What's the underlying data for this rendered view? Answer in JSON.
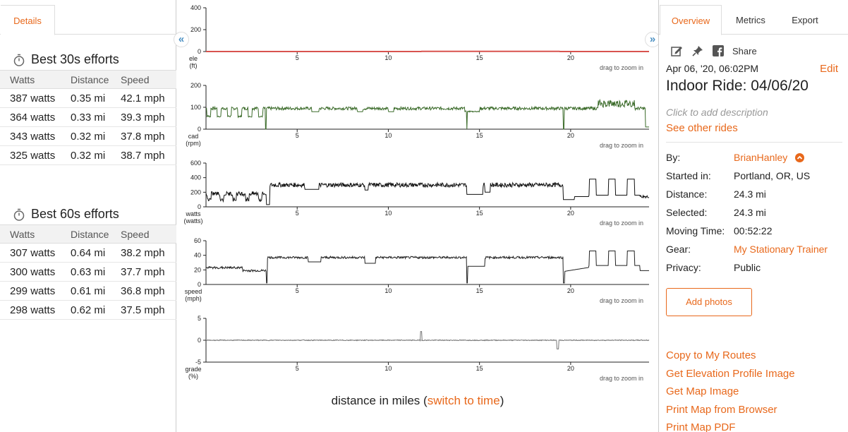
{
  "left_panel": {
    "tab_label": "Details",
    "efforts_30": {
      "title": "Best 30s efforts",
      "headers": [
        "Watts",
        "Distance",
        "Speed"
      ],
      "rows": [
        [
          "387 watts",
          "0.35 mi",
          "42.1 mph"
        ],
        [
          "364 watts",
          "0.33 mi",
          "39.3 mph"
        ],
        [
          "343 watts",
          "0.32 mi",
          "37.8 mph"
        ],
        [
          "325 watts",
          "0.32 mi",
          "38.7 mph"
        ]
      ]
    },
    "efforts_60": {
      "title": "Best 60s efforts",
      "headers": [
        "Watts",
        "Distance",
        "Speed"
      ],
      "rows": [
        [
          "307 watts",
          "0.64 mi",
          "38.2 mph"
        ],
        [
          "300 watts",
          "0.63 mi",
          "37.7 mph"
        ],
        [
          "299 watts",
          "0.61 mi",
          "36.8 mph"
        ],
        [
          "298 watts",
          "0.62 mi",
          "37.5 mph"
        ]
      ]
    },
    "collapse_icon": "«",
    "expand_icon": "»"
  },
  "charts": {
    "zoom_hint": "drag to zoom in",
    "x_ticks": [
      5,
      10,
      15,
      20
    ],
    "x_max": 24.3,
    "panels": [
      {
        "key": "ele",
        "label_line1": "ele",
        "label_line2": "(ft)",
        "y_ticks": [
          0,
          200,
          400
        ],
        "ymin": 0,
        "ymax": 400,
        "color": "#d9534f",
        "style": "flat"
      },
      {
        "key": "cad",
        "label_line1": "cad",
        "label_line2": "(rpm)",
        "y_ticks": [
          0,
          100,
          200
        ],
        "ymin": 0,
        "ymax": 200,
        "color": "#3b6b2a",
        "style": "cad"
      },
      {
        "key": "watts",
        "label_line1": "watts",
        "label_line2": "(watts)",
        "y_ticks": [
          0,
          200,
          400,
          600
        ],
        "ymin": 0,
        "ymax": 600,
        "color": "#111111",
        "style": "watts"
      },
      {
        "key": "speed",
        "label_line1": "speed",
        "label_line2": "(mph)",
        "y_ticks": [
          0,
          20,
          40,
          60
        ],
        "ymin": 0,
        "ymax": 60,
        "color": "#222222",
        "style": "speed"
      },
      {
        "key": "grade",
        "label_line1": "grade",
        "label_line2": "(%)",
        "y_ticks": [
          -5,
          0,
          5
        ],
        "ymin": -5,
        "ymax": 5,
        "color": "#777777",
        "style": "grade"
      }
    ],
    "footer_prefix": "distance in miles (",
    "footer_link": "switch to time",
    "footer_suffix": ")"
  },
  "right_panel": {
    "tabs": [
      "Overview",
      "Metrics",
      "Export"
    ],
    "share_label": "Share",
    "date": "Apr 06, '20, 06:02PM",
    "edit_label": "Edit",
    "title": "Indoor Ride: 04/06/20",
    "description_placeholder": "Click to add description",
    "other_rides": "See other rides",
    "info": [
      {
        "key": "By:",
        "value": "BrianHanley",
        "link": true
      },
      {
        "key": "Started in:",
        "value": "Portland, OR, US",
        "link": false
      },
      {
        "key": "Distance:",
        "value": "24.3 mi",
        "link": false
      },
      {
        "key": "Selected:",
        "value": "24.3 mi",
        "link": false
      },
      {
        "key": "Moving Time:",
        "value": "00:52:22",
        "link": false
      },
      {
        "key": "Gear:",
        "value": "My Stationary Trainer",
        "link": true
      },
      {
        "key": "Privacy:",
        "value": "Public",
        "link": false
      }
    ],
    "add_photos": "Add photos",
    "links": [
      "Copy to My Routes",
      "Get Elevation Profile Image",
      "Get Map Image",
      "Print Map from Browser",
      "Print Map PDF"
    ],
    "accent_color": "#e8681b"
  }
}
